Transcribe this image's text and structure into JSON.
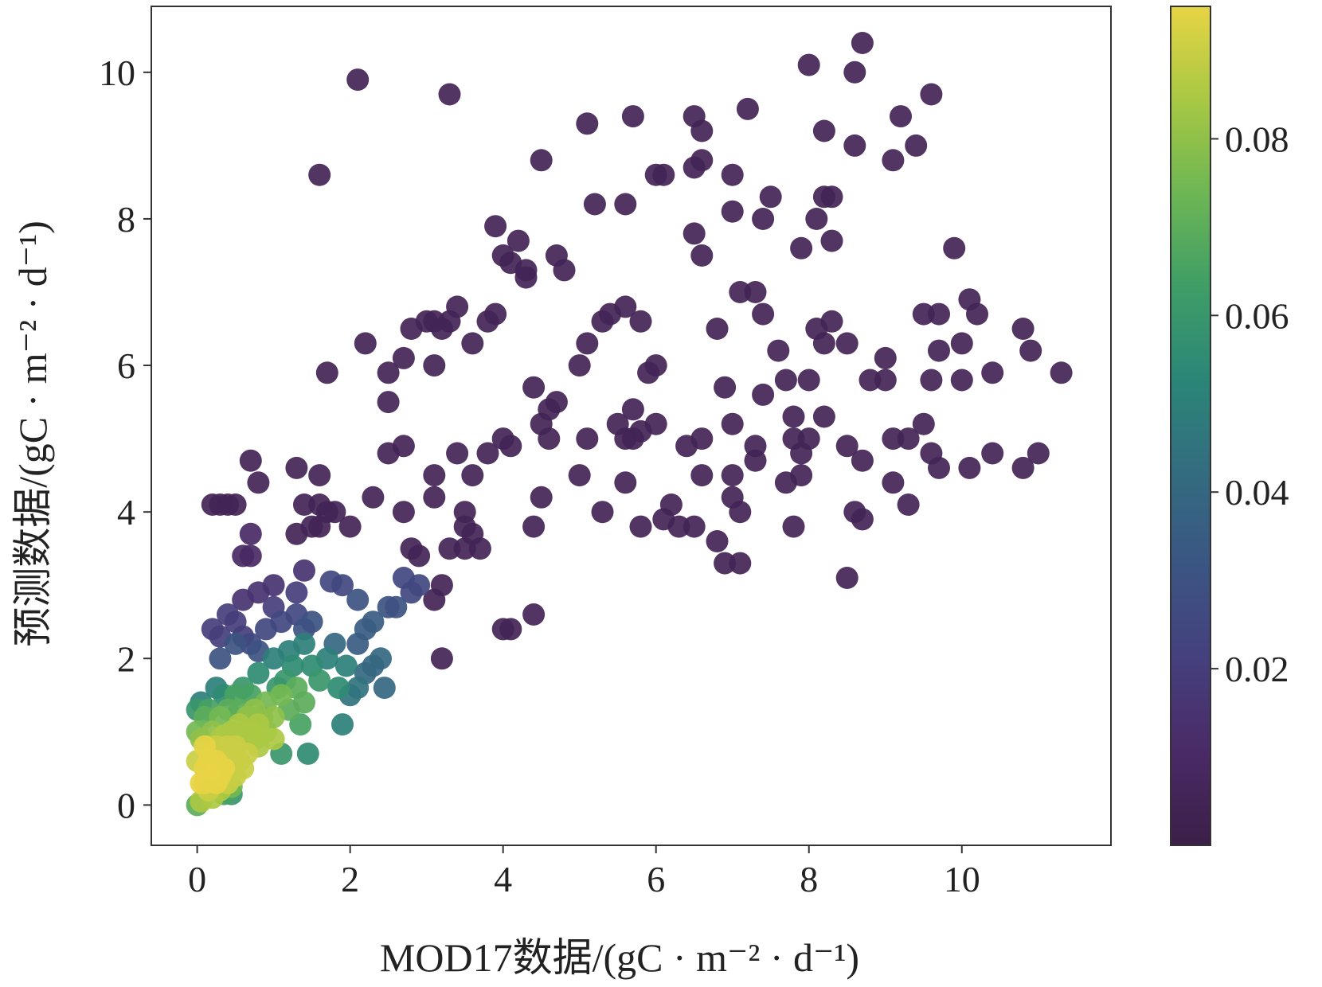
{
  "chart_data": {
    "type": "scatter",
    "xlabel": "MOD17数据/(gC · m⁻² · d⁻¹)",
    "ylabel": "预测数据/(gC · m⁻² · d⁻¹)",
    "xlim": [
      -0.6,
      11.95
    ],
    "ylim": [
      -0.55,
      10.9
    ],
    "xticks": [
      0,
      2,
      4,
      6,
      8,
      10
    ],
    "yticks": [
      0,
      2,
      4,
      6,
      8,
      10
    ],
    "grid": false,
    "colorbar": {
      "colormap": "viridis",
      "range": [
        0.0,
        0.095
      ],
      "ticks": [
        0.02,
        0.04,
        0.06,
        0.08
      ],
      "tick_labels": [
        "0.02",
        "0.04",
        "0.06",
        "0.08"
      ]
    },
    "colors": {
      "viridis_stops": [
        "#3c1f48",
        "#4a2a66",
        "#45407e",
        "#3b5583",
        "#336c80",
        "#2b8677",
        "#3f9e66",
        "#6db654",
        "#a8c843",
        "#e7d444"
      ],
      "axis": "#333333",
      "marker_alpha": 0.92
    },
    "points": [
      [
        0.0,
        0.0,
        0.07
      ],
      [
        0.05,
        0.3,
        0.095
      ],
      [
        0.1,
        0.5,
        0.095
      ],
      [
        0.15,
        0.4,
        0.095
      ],
      [
        0.2,
        0.7,
        0.09
      ],
      [
        0.25,
        0.6,
        0.095
      ],
      [
        0.3,
        0.9,
        0.085
      ],
      [
        0.35,
        0.5,
        0.095
      ],
      [
        0.4,
        0.8,
        0.09
      ],
      [
        0.45,
        1.0,
        0.085
      ],
      [
        0.5,
        0.7,
        0.09
      ],
      [
        0.55,
        1.1,
        0.085
      ],
      [
        0.6,
        0.9,
        0.085
      ],
      [
        0.65,
        1.2,
        0.08
      ],
      [
        0.7,
        1.0,
        0.085
      ],
      [
        0.75,
        1.3,
        0.08
      ],
      [
        0.8,
        1.1,
        0.085
      ],
      [
        0.9,
        1.4,
        0.075
      ],
      [
        1.0,
        1.2,
        0.08
      ],
      [
        1.1,
        1.5,
        0.075
      ],
      [
        1.2,
        1.3,
        0.07
      ],
      [
        1.3,
        1.6,
        0.07
      ],
      [
        1.4,
        1.4,
        0.07
      ],
      [
        0.05,
        0.9,
        0.08
      ],
      [
        0.1,
        1.2,
        0.07
      ],
      [
        0.15,
        0.2,
        0.09
      ],
      [
        0.2,
        0.1,
        0.085
      ],
      [
        0.25,
        0.3,
        0.095
      ],
      [
        0.3,
        0.2,
        0.085
      ],
      [
        0.4,
        0.3,
        0.09
      ],
      [
        0.5,
        0.4,
        0.09
      ],
      [
        0.6,
        0.5,
        0.09
      ],
      [
        0.45,
        0.25,
        0.075
      ],
      [
        0.35,
        0.15,
        0.065
      ],
      [
        0.0,
        0.6,
        0.09
      ],
      [
        0.0,
        1.0,
        0.075
      ],
      [
        0.0,
        1.3,
        0.06
      ],
      [
        0.05,
        1.4,
        0.05
      ],
      [
        0.1,
        0.8,
        0.095
      ],
      [
        0.2,
        1.0,
        0.08
      ],
      [
        0.3,
        1.2,
        0.075
      ],
      [
        0.4,
        1.3,
        0.07
      ],
      [
        0.5,
        1.5,
        0.065
      ],
      [
        0.6,
        1.6,
        0.06
      ],
      [
        0.7,
        1.5,
        0.065
      ],
      [
        0.8,
        0.8,
        0.085
      ],
      [
        0.9,
        1.0,
        0.08
      ],
      [
        1.0,
        0.9,
        0.085
      ],
      [
        0.55,
        0.6,
        0.09
      ],
      [
        0.65,
        0.7,
        0.09
      ],
      [
        0.75,
        0.9,
        0.085
      ],
      [
        0.85,
        1.2,
        0.075
      ],
      [
        1.05,
        1.6,
        0.06
      ],
      [
        1.15,
        1.7,
        0.06
      ],
      [
        1.25,
        1.9,
        0.055
      ],
      [
        1.5,
        1.9,
        0.055
      ],
      [
        1.6,
        1.7,
        0.06
      ],
      [
        1.7,
        2.0,
        0.05
      ],
      [
        1.85,
        1.6,
        0.055
      ],
      [
        1.95,
        1.9,
        0.05
      ],
      [
        1.4,
        2.2,
        0.05
      ],
      [
        1.2,
        2.1,
        0.05
      ],
      [
        1.0,
        2.0,
        0.05
      ],
      [
        0.8,
        1.8,
        0.055
      ],
      [
        1.1,
        0.7,
        0.06
      ],
      [
        1.45,
        0.7,
        0.055
      ],
      [
        1.35,
        1.1,
        0.065
      ],
      [
        0.45,
        0.15,
        0.06
      ],
      [
        0.25,
        1.6,
        0.05
      ],
      [
        0.35,
        1.5,
        0.055
      ],
      [
        0.15,
        1.3,
        0.065
      ],
      [
        0.55,
        1.3,
        0.07
      ],
      [
        0.1,
        0.3,
        0.095
      ],
      [
        0.2,
        0.5,
        0.095
      ],
      [
        0.3,
        0.4,
        0.095
      ],
      [
        0.4,
        0.6,
        0.09
      ],
      [
        0.5,
        0.8,
        0.09
      ],
      [
        0.6,
        1.0,
        0.085
      ],
      [
        0.7,
        1.2,
        0.08
      ],
      [
        0.05,
        0.05,
        0.085
      ],
      [
        0.15,
        0.6,
        0.095
      ],
      [
        0.25,
        0.8,
        0.09
      ],
      [
        0.35,
        0.95,
        0.085
      ],
      [
        1.8,
        2.2,
        0.04
      ],
      [
        2.0,
        1.5,
        0.045
      ],
      [
        1.9,
        1.1,
        0.05
      ],
      [
        2.1,
        1.6,
        0.045
      ],
      [
        2.2,
        1.8,
        0.04
      ],
      [
        2.3,
        1.9,
        0.04
      ],
      [
        2.4,
        2.0,
        0.04
      ],
      [
        2.1,
        2.2,
        0.035
      ],
      [
        2.2,
        2.4,
        0.035
      ],
      [
        2.3,
        2.5,
        0.035
      ],
      [
        2.45,
        1.6,
        0.04
      ],
      [
        2.6,
        2.7,
        0.03
      ],
      [
        2.5,
        2.7,
        0.03
      ],
      [
        2.7,
        3.1,
        0.025
      ],
      [
        2.8,
        2.9,
        0.025
      ],
      [
        2.9,
        3.0,
        0.025
      ],
      [
        2.1,
        2.8,
        0.03
      ],
      [
        1.9,
        3.0,
        0.025
      ],
      [
        1.75,
        3.05,
        0.025
      ],
      [
        0.2,
        2.4,
        0.02
      ],
      [
        0.3,
        2.3,
        0.02
      ],
      [
        0.4,
        2.6,
        0.02
      ],
      [
        0.5,
        2.5,
        0.02
      ],
      [
        0.6,
        2.3,
        0.02
      ],
      [
        0.7,
        2.2,
        0.025
      ],
      [
        0.8,
        2.1,
        0.03
      ],
      [
        0.9,
        2.4,
        0.025
      ],
      [
        1.0,
        2.7,
        0.02
      ],
      [
        1.1,
        2.5,
        0.025
      ],
      [
        1.3,
        2.6,
        0.025
      ],
      [
        1.4,
        2.4,
        0.03
      ],
      [
        1.5,
        2.5,
        0.03
      ],
      [
        1.3,
        2.9,
        0.02
      ],
      [
        1.4,
        3.2,
        0.015
      ],
      [
        1.0,
        3.0,
        0.015
      ],
      [
        0.8,
        2.9,
        0.015
      ],
      [
        0.6,
        2.8,
        0.015
      ],
      [
        0.5,
        2.2,
        0.03
      ],
      [
        0.3,
        2.0,
        0.03
      ],
      [
        0.6,
        3.4,
        0.01
      ],
      [
        0.7,
        3.7,
        0.01
      ],
      [
        0.7,
        3.4,
        0.01
      ],
      [
        0.2,
        4.1,
        0.005
      ],
      [
        0.3,
        4.1,
        0.005
      ],
      [
        0.4,
        4.1,
        0.005
      ],
      [
        0.5,
        4.1,
        0.005
      ],
      [
        0.7,
        4.7,
        0.005
      ],
      [
        0.8,
        4.4,
        0.005
      ],
      [
        1.3,
        4.6,
        0.005
      ],
      [
        1.6,
        4.5,
        0.005
      ],
      [
        1.4,
        4.1,
        0.005
      ],
      [
        1.5,
        3.8,
        0.005
      ],
      [
        1.3,
        3.7,
        0.005
      ],
      [
        1.6,
        3.8,
        0.005
      ],
      [
        1.7,
        4.0,
        0.005
      ],
      [
        1.8,
        4.0,
        0.005
      ],
      [
        1.6,
        4.1,
        0.005
      ],
      [
        2.0,
        3.8,
        0.005
      ],
      [
        2.2,
        6.3,
        0.005
      ],
      [
        2.5,
        5.9,
        0.005
      ],
      [
        2.5,
        5.5,
        0.005
      ],
      [
        2.5,
        4.8,
        0.005
      ],
      [
        2.7,
        4.9,
        0.005
      ],
      [
        2.3,
        4.2,
        0.005
      ],
      [
        2.7,
        4.0,
        0.005
      ],
      [
        2.8,
        3.5,
        0.005
      ],
      [
        2.9,
        3.4,
        0.005
      ],
      [
        3.1,
        4.2,
        0.005
      ],
      [
        3.1,
        4.5,
        0.005
      ],
      [
        3.1,
        6.0,
        0.005
      ],
      [
        2.7,
        6.1,
        0.005
      ],
      [
        2.8,
        6.5,
        0.005
      ],
      [
        3.0,
        6.6,
        0.005
      ],
      [
        3.1,
        6.6,
        0.005
      ],
      [
        3.2,
        6.5,
        0.005
      ],
      [
        3.3,
        6.6,
        0.005
      ],
      [
        3.4,
        6.8,
        0.005
      ],
      [
        3.1,
        2.8,
        0.005
      ],
      [
        3.2,
        3.0,
        0.005
      ],
      [
        3.3,
        3.5,
        0.005
      ],
      [
        3.4,
        4.8,
        0.005
      ],
      [
        3.5,
        3.8,
        0.005
      ],
      [
        3.5,
        3.5,
        0.005
      ],
      [
        3.6,
        3.7,
        0.005
      ],
      [
        3.7,
        3.5,
        0.005
      ],
      [
        3.5,
        4.0,
        0.005
      ],
      [
        3.6,
        4.5,
        0.005
      ],
      [
        3.8,
        4.8,
        0.005
      ],
      [
        3.6,
        6.3,
        0.005
      ],
      [
        3.8,
        6.6,
        0.005
      ],
      [
        3.9,
        6.7,
        0.005
      ],
      [
        3.9,
        7.9,
        0.005
      ],
      [
        4.0,
        7.5,
        0.005
      ],
      [
        4.2,
        7.7,
        0.005
      ],
      [
        4.3,
        7.3,
        0.005
      ],
      [
        4.3,
        7.2,
        0.005
      ],
      [
        4.1,
        7.4,
        0.005
      ],
      [
        4.0,
        5.0,
        0.005
      ],
      [
        4.1,
        4.9,
        0.005
      ],
      [
        4.0,
        2.4,
        0.005
      ],
      [
        4.1,
        2.4,
        0.005
      ],
      [
        4.4,
        2.6,
        0.005
      ],
      [
        4.4,
        3.8,
        0.005
      ],
      [
        4.5,
        4.2,
        0.005
      ],
      [
        4.4,
        5.7,
        0.005
      ],
      [
        4.5,
        5.2,
        0.005
      ],
      [
        4.6,
        5.0,
        0.005
      ],
      [
        4.6,
        5.4,
        0.005
      ],
      [
        4.7,
        5.5,
        0.005
      ],
      [
        4.7,
        7.5,
        0.005
      ],
      [
        4.8,
        7.3,
        0.005
      ],
      [
        4.5,
        8.8,
        0.005
      ],
      [
        3.2,
        2.0,
        0.005
      ],
      [
        3.3,
        9.7,
        0.005
      ],
      [
        2.1,
        9.9,
        0.005
      ],
      [
        1.6,
        8.6,
        0.005
      ],
      [
        1.7,
        5.9,
        0.005
      ],
      [
        5.0,
        6.0,
        0.005
      ],
      [
        5.1,
        6.3,
        0.005
      ],
      [
        5.0,
        4.5,
        0.005
      ],
      [
        5.1,
        5.0,
        0.005
      ],
      [
        5.3,
        4.0,
        0.005
      ],
      [
        5.5,
        5.2,
        0.005
      ],
      [
        5.6,
        5.0,
        0.005
      ],
      [
        5.6,
        4.4,
        0.005
      ],
      [
        5.7,
        5.0,
        0.005
      ],
      [
        5.8,
        5.1,
        0.005
      ],
      [
        5.8,
        3.8,
        0.005
      ],
      [
        5.9,
        5.9,
        0.005
      ],
      [
        5.7,
        5.4,
        0.005
      ],
      [
        5.8,
        6.6,
        0.005
      ],
      [
        5.6,
        6.8,
        0.005
      ],
      [
        5.3,
        6.6,
        0.005
      ],
      [
        5.4,
        6.7,
        0.005
      ],
      [
        5.2,
        8.2,
        0.005
      ],
      [
        5.6,
        8.2,
        0.005
      ],
      [
        5.1,
        9.3,
        0.005
      ],
      [
        5.7,
        9.4,
        0.005
      ],
      [
        6.0,
        8.6,
        0.005
      ],
      [
        6.1,
        8.6,
        0.005
      ],
      [
        6.0,
        6.0,
        0.005
      ],
      [
        6.0,
        5.2,
        0.005
      ],
      [
        6.1,
        3.9,
        0.005
      ],
      [
        6.2,
        4.1,
        0.005
      ],
      [
        6.3,
        3.8,
        0.005
      ],
      [
        6.5,
        7.8,
        0.005
      ],
      [
        6.5,
        8.7,
        0.005
      ],
      [
        6.6,
        8.8,
        0.005
      ],
      [
        6.6,
        7.5,
        0.005
      ],
      [
        6.5,
        9.4,
        0.005
      ],
      [
        6.6,
        9.2,
        0.005
      ],
      [
        6.4,
        4.9,
        0.005
      ],
      [
        6.5,
        3.8,
        0.005
      ],
      [
        6.6,
        4.5,
        0.005
      ],
      [
        6.6,
        5.0,
        0.005
      ],
      [
        6.8,
        3.6,
        0.005
      ],
      [
        6.9,
        3.3,
        0.005
      ],
      [
        6.8,
        6.5,
        0.005
      ],
      [
        6.9,
        5.7,
        0.005
      ],
      [
        7.0,
        5.2,
        0.005
      ],
      [
        7.0,
        4.5,
        0.005
      ],
      [
        7.1,
        4.0,
        0.005
      ],
      [
        7.0,
        4.2,
        0.005
      ],
      [
        7.1,
        3.3,
        0.005
      ],
      [
        7.1,
        7.0,
        0.005
      ],
      [
        7.3,
        7.0,
        0.005
      ],
      [
        7.0,
        8.6,
        0.005
      ],
      [
        7.0,
        8.1,
        0.005
      ],
      [
        7.2,
        9.5,
        0.005
      ],
      [
        7.3,
        4.9,
        0.005
      ],
      [
        7.3,
        4.7,
        0.005
      ],
      [
        7.4,
        5.6,
        0.005
      ],
      [
        7.4,
        8.0,
        0.005
      ],
      [
        7.5,
        8.3,
        0.005
      ],
      [
        7.4,
        6.7,
        0.005
      ],
      [
        7.6,
        6.2,
        0.005
      ],
      [
        7.7,
        5.8,
        0.005
      ],
      [
        7.7,
        4.4,
        0.005
      ],
      [
        7.8,
        5.3,
        0.005
      ],
      [
        7.8,
        5.0,
        0.005
      ],
      [
        7.9,
        4.8,
        0.005
      ],
      [
        7.9,
        4.5,
        0.005
      ],
      [
        7.9,
        7.6,
        0.005
      ],
      [
        7.8,
        3.8,
        0.005
      ],
      [
        8.0,
        5.8,
        0.005
      ],
      [
        8.0,
        5.0,
        0.005
      ],
      [
        8.1,
        6.5,
        0.005
      ],
      [
        8.0,
        10.1,
        0.005
      ],
      [
        8.1,
        8.0,
        0.005
      ],
      [
        8.2,
        8.3,
        0.005
      ],
      [
        8.2,
        9.2,
        0.005
      ],
      [
        8.2,
        6.3,
        0.005
      ],
      [
        8.3,
        6.6,
        0.005
      ],
      [
        8.2,
        5.3,
        0.005
      ],
      [
        8.3,
        7.7,
        0.005
      ],
      [
        8.3,
        8.3,
        0.005
      ],
      [
        8.5,
        6.3,
        0.005
      ],
      [
        8.5,
        4.9,
        0.005
      ],
      [
        8.6,
        4.0,
        0.005
      ],
      [
        8.5,
        3.1,
        0.005
      ],
      [
        8.6,
        10.0,
        0.005
      ],
      [
        8.7,
        10.4,
        0.005
      ],
      [
        8.6,
        9.0,
        0.005
      ],
      [
        8.7,
        4.7,
        0.005
      ],
      [
        8.7,
        3.9,
        0.005
      ],
      [
        8.8,
        5.8,
        0.005
      ],
      [
        9.0,
        6.1,
        0.005
      ],
      [
        9.0,
        5.8,
        0.005
      ],
      [
        9.1,
        5.0,
        0.005
      ],
      [
        9.1,
        4.4,
        0.005
      ],
      [
        9.1,
        8.8,
        0.005
      ],
      [
        9.2,
        9.4,
        0.005
      ],
      [
        9.3,
        4.1,
        0.005
      ],
      [
        9.3,
        5.0,
        0.005
      ],
      [
        9.4,
        9.0,
        0.005
      ],
      [
        9.5,
        5.2,
        0.005
      ],
      [
        9.5,
        6.7,
        0.005
      ],
      [
        9.6,
        9.7,
        0.005
      ],
      [
        9.6,
        5.8,
        0.005
      ],
      [
        9.6,
        4.8,
        0.005
      ],
      [
        9.7,
        4.6,
        0.005
      ],
      [
        9.7,
        6.7,
        0.005
      ],
      [
        9.7,
        6.2,
        0.005
      ],
      [
        9.9,
        7.6,
        0.005
      ],
      [
        10.0,
        6.3,
        0.005
      ],
      [
        10.0,
        5.8,
        0.005
      ],
      [
        10.1,
        6.9,
        0.005
      ],
      [
        10.1,
        4.6,
        0.005
      ],
      [
        10.2,
        6.7,
        0.005
      ],
      [
        10.4,
        5.9,
        0.005
      ],
      [
        10.4,
        4.8,
        0.005
      ],
      [
        10.8,
        6.5,
        0.005
      ],
      [
        10.8,
        4.6,
        0.005
      ],
      [
        10.9,
        6.2,
        0.005
      ],
      [
        11.0,
        4.8,
        0.005
      ],
      [
        11.3,
        5.9,
        0.005
      ]
    ]
  }
}
